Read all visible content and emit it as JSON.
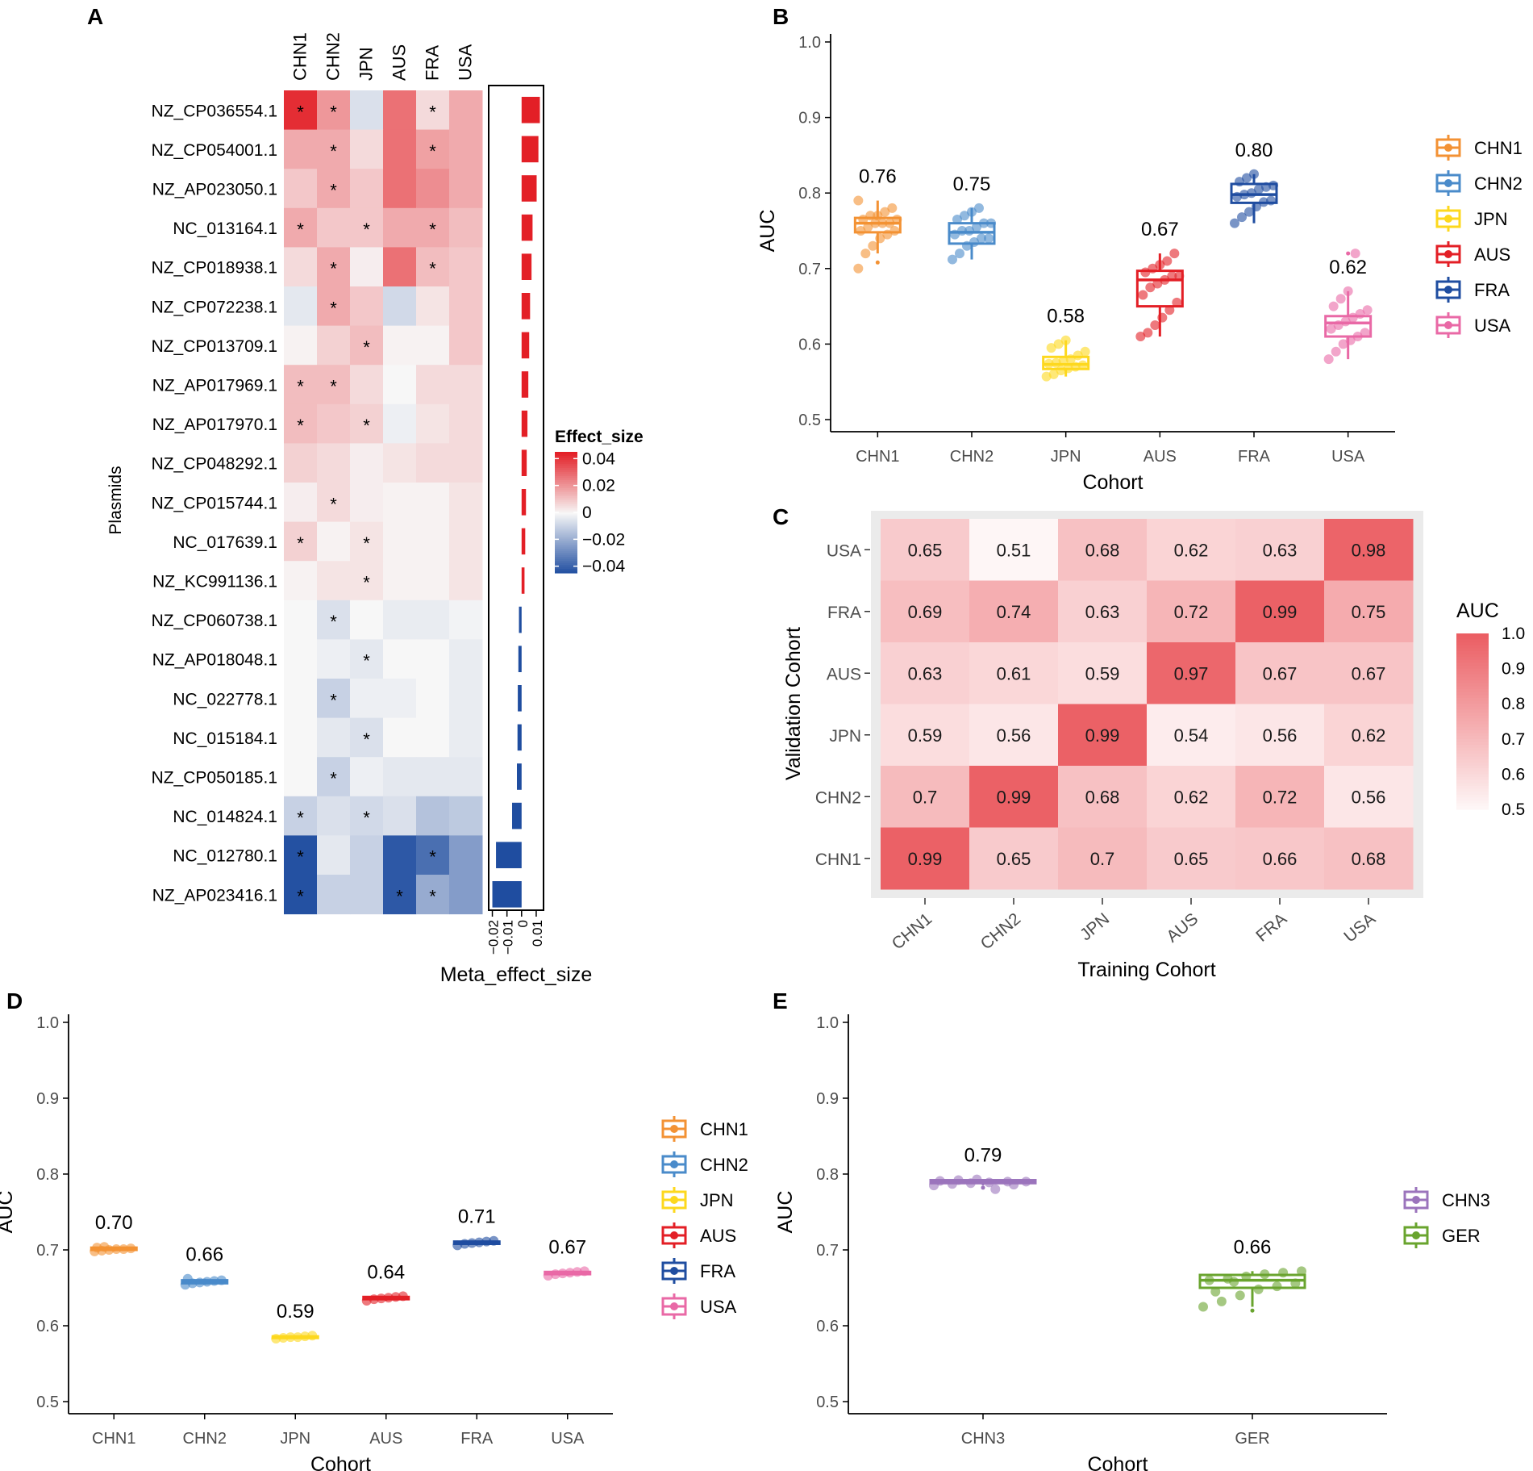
{
  "panel_labels": [
    "A",
    "B",
    "C",
    "D",
    "E"
  ],
  "colors": {
    "CHN1": "#f39234",
    "CHN2": "#4a8bca",
    "JPN": "#fdd81e",
    "AUS": "#e31f26",
    "FRA": "#1f4da0",
    "USA": "#e969a6",
    "CHN3": "#9b74bc",
    "GER": "#69a42e",
    "heat_low": "#ffffff",
    "heat_high": "#e31f26",
    "eff_pos": "#e31f26",
    "eff_neg": "#1f4da0"
  },
  "chart_data": [
    {
      "panel": "A",
      "type": "heatmap",
      "columns": [
        "CHN1",
        "CHN2",
        "JPN",
        "AUS",
        "FRA",
        "USA"
      ],
      "ylabel": "Plasmids",
      "legend_title": "Effect_size",
      "legend_ticks": [
        "0.04",
        "0.02",
        "0",
        "−0.02",
        "−0.04"
      ],
      "legend_values": [
        0.04,
        0.02,
        0,
        -0.02,
        -0.04
      ],
      "range": [
        -0.045,
        0.045
      ],
      "rows": [
        {
          "name": "NZ_CP036554.1",
          "values": [
            0.042,
            0.02,
            -0.006,
            0.028,
            0.006,
            0.016
          ],
          "stars": [
            true,
            true,
            false,
            false,
            true,
            false
          ],
          "meta": 0.0125
        },
        {
          "name": "NZ_CP054001.1",
          "values": [
            0.016,
            0.016,
            0.006,
            0.028,
            0.018,
            0.016
          ],
          "stars": [
            false,
            true,
            false,
            false,
            true,
            false
          ],
          "meta": 0.0115
        },
        {
          "name": "NZ_AP023050.1",
          "values": [
            0.01,
            0.016,
            0.01,
            0.028,
            0.022,
            0.016
          ],
          "stars": [
            false,
            true,
            false,
            false,
            false,
            false
          ],
          "meta": 0.0103
        },
        {
          "name": "NC_013164.1",
          "values": [
            0.016,
            0.01,
            0.01,
            0.016,
            0.016,
            0.012
          ],
          "stars": [
            true,
            false,
            true,
            false,
            true,
            false
          ],
          "meta": 0.0075
        },
        {
          "name": "NZ_CP018938.1",
          "values": [
            0.006,
            0.016,
            0.002,
            0.028,
            0.012,
            0.01
          ],
          "stars": [
            false,
            true,
            false,
            false,
            true,
            false
          ],
          "meta": 0.0068
        },
        {
          "name": "NZ_CP072238.1",
          "values": [
            -0.004,
            0.016,
            0.01,
            -0.008,
            0.004,
            0.01
          ],
          "stars": [
            false,
            true,
            false,
            false,
            false,
            false
          ],
          "meta": 0.0058
        },
        {
          "name": "NZ_CP013709.1",
          "values": [
            0.001,
            0.008,
            0.012,
            0.001,
            0.001,
            0.01
          ],
          "stars": [
            false,
            false,
            true,
            false,
            false,
            false
          ],
          "meta": 0.0052
        },
        {
          "name": "NZ_AP017969.1",
          "values": [
            0.012,
            0.012,
            0.006,
            0.0,
            0.006,
            0.006
          ],
          "stars": [
            true,
            true,
            false,
            false,
            false,
            false
          ],
          "meta": 0.0046
        },
        {
          "name": "NZ_AP017970.1",
          "values": [
            0.012,
            0.01,
            0.008,
            -0.002,
            0.004,
            0.006
          ],
          "stars": [
            true,
            false,
            true,
            false,
            false,
            false
          ],
          "meta": 0.004
        },
        {
          "name": "NZ_CP048292.1",
          "values": [
            0.008,
            0.006,
            0.002,
            0.004,
            0.006,
            0.006
          ],
          "stars": [
            false,
            false,
            false,
            false,
            false,
            false
          ],
          "meta": 0.0035
        },
        {
          "name": "NZ_CP015744.1",
          "values": [
            0.002,
            0.006,
            0.002,
            0.001,
            0.001,
            0.004
          ],
          "stars": [
            false,
            true,
            false,
            false,
            false,
            false
          ],
          "meta": 0.003
        },
        {
          "name": "NC_017639.1",
          "values": [
            0.008,
            0.001,
            0.004,
            0.001,
            0.001,
            0.004
          ],
          "stars": [
            true,
            false,
            true,
            false,
            false,
            false
          ],
          "meta": 0.0025
        },
        {
          "name": "NZ_KC991136.1",
          "values": [
            0.001,
            0.004,
            0.004,
            0.001,
            0.001,
            0.004
          ],
          "stars": [
            false,
            false,
            true,
            false,
            false,
            false
          ],
          "meta": 0.002
        },
        {
          "name": "NZ_CP060738.1",
          "values": [
            0.0,
            -0.006,
            0.0,
            -0.003,
            -0.003,
            -0.001
          ],
          "stars": [
            false,
            true,
            false,
            false,
            false,
            false
          ],
          "meta": -0.0018
        },
        {
          "name": "NZ_AP018048.1",
          "values": [
            0.0,
            -0.002,
            -0.004,
            0.0,
            0.0,
            -0.003
          ],
          "stars": [
            false,
            false,
            true,
            false,
            false,
            false
          ],
          "meta": -0.0022
        },
        {
          "name": "NC_022778.1",
          "values": [
            0.0,
            -0.01,
            -0.002,
            -0.002,
            0.0,
            -0.003
          ],
          "stars": [
            false,
            true,
            false,
            false,
            false,
            false
          ],
          "meta": -0.0026
        },
        {
          "name": "NC_015184.1",
          "values": [
            0.0,
            -0.004,
            -0.006,
            0.0,
            0.0,
            -0.003
          ],
          "stars": [
            false,
            false,
            true,
            false,
            false,
            false
          ],
          "meta": -0.0028
        },
        {
          "name": "NZ_CP050185.1",
          "values": [
            0.0,
            -0.01,
            -0.002,
            -0.004,
            -0.004,
            -0.004
          ],
          "stars": [
            false,
            true,
            false,
            false,
            false,
            false
          ],
          "meta": -0.0032
        },
        {
          "name": "NC_014824.1",
          "values": [
            -0.01,
            -0.006,
            -0.008,
            -0.006,
            -0.014,
            -0.012
          ],
          "stars": [
            true,
            false,
            true,
            false,
            false,
            false
          ],
          "meta": -0.0065
        },
        {
          "name": "NC_012780.1",
          "values": [
            -0.044,
            -0.004,
            -0.01,
            -0.042,
            -0.036,
            -0.024
          ],
          "stars": [
            true,
            false,
            false,
            false,
            true,
            false
          ],
          "meta": -0.0175
        },
        {
          "name": "NZ_AP023416.1",
          "values": [
            -0.044,
            -0.01,
            -0.01,
            -0.042,
            -0.02,
            -0.024
          ],
          "stars": [
            true,
            false,
            false,
            true,
            true,
            false
          ],
          "meta": -0.02
        }
      ],
      "meta_axis": {
        "label": "Meta_effect_size",
        "ticks": [
          -0.02,
          -0.01,
          0,
          0.01
        ],
        "tick_labels": [
          "−0.02",
          "−0.01",
          "0",
          "0.01"
        ],
        "range": [
          -0.0225,
          0.015
        ]
      }
    },
    {
      "panel": "B",
      "type": "box",
      "xlabel": "Cohort",
      "ylabel": "AUC",
      "ylim": [
        0.5,
        1.0
      ],
      "yticks": [
        0.5,
        0.6,
        0.7,
        0.8,
        0.9,
        1.0
      ],
      "ytick_labels": [
        "0.5",
        "0.6",
        "0.7",
        "0.8",
        "0.9",
        "1.0"
      ],
      "categories": [
        "CHN1",
        "CHN2",
        "JPN",
        "AUS",
        "FRA",
        "USA"
      ],
      "groups": [
        {
          "name": "CHN1",
          "q1": 0.748,
          "median": 0.76,
          "q3": 0.767,
          "whisker_low": 0.72,
          "whisker_high": 0.79,
          "label": "0.76",
          "outliers": [
            0.708
          ],
          "points": [
            0.7,
            0.72,
            0.73,
            0.74,
            0.745,
            0.75,
            0.75,
            0.755,
            0.76,
            0.76,
            0.76,
            0.765,
            0.765,
            0.77,
            0.77,
            0.775,
            0.78,
            0.79
          ]
        },
        {
          "name": "CHN2",
          "q1": 0.733,
          "median": 0.748,
          "q3": 0.76,
          "whisker_low": 0.712,
          "whisker_high": 0.78,
          "label": "0.75",
          "outliers": [],
          "points": [
            0.712,
            0.72,
            0.73,
            0.735,
            0.74,
            0.74,
            0.745,
            0.75,
            0.75,
            0.755,
            0.76,
            0.76,
            0.765,
            0.77,
            0.775,
            0.78
          ]
        },
        {
          "name": "JPN",
          "q1": 0.567,
          "median": 0.573,
          "q3": 0.583,
          "whisker_low": 0.557,
          "whisker_high": 0.605,
          "label": "0.58",
          "outliers": [],
          "points": [
            0.557,
            0.56,
            0.565,
            0.568,
            0.57,
            0.572,
            0.574,
            0.575,
            0.578,
            0.58,
            0.585,
            0.59,
            0.595,
            0.6,
            0.605
          ]
        },
        {
          "name": "AUS",
          "q1": 0.65,
          "median": 0.685,
          "q3": 0.697,
          "whisker_low": 0.61,
          "whisker_high": 0.72,
          "label": "0.67",
          "outliers": [],
          "points": [
            0.61,
            0.615,
            0.625,
            0.635,
            0.645,
            0.655,
            0.665,
            0.675,
            0.68,
            0.685,
            0.69,
            0.69,
            0.695,
            0.7,
            0.705,
            0.71,
            0.72
          ]
        },
        {
          "name": "FRA",
          "q1": 0.787,
          "median": 0.798,
          "q3": 0.812,
          "whisker_low": 0.76,
          "whisker_high": 0.825,
          "label": "0.80",
          "outliers": [],
          "points": [
            0.76,
            0.768,
            0.775,
            0.782,
            0.788,
            0.79,
            0.795,
            0.798,
            0.8,
            0.805,
            0.808,
            0.81,
            0.815,
            0.82,
            0.825
          ]
        },
        {
          "name": "USA",
          "q1": 0.61,
          "median": 0.628,
          "q3": 0.637,
          "whisker_low": 0.58,
          "whisker_high": 0.67,
          "label": "0.62",
          "outliers": [
            0.72
          ],
          "points": [
            0.58,
            0.59,
            0.6,
            0.605,
            0.61,
            0.615,
            0.62,
            0.625,
            0.63,
            0.635,
            0.64,
            0.645,
            0.65,
            0.66,
            0.67,
            0.72
          ]
        }
      ]
    },
    {
      "panel": "C",
      "type": "heatmap",
      "xlabel": "Training Cohort",
      "ylabel": "Validation Cohort",
      "x": [
        "CHN1",
        "CHN2",
        "JPN",
        "AUS",
        "FRA",
        "USA"
      ],
      "y_top_to_bottom": [
        "USA",
        "FRA",
        "AUS",
        "JPN",
        "CHN2",
        "CHN1"
      ],
      "values": [
        [
          "0.65",
          "0.51",
          "0.68",
          "0.62",
          "0.63",
          "0.98"
        ],
        [
          "0.69",
          "0.74",
          "0.63",
          "0.72",
          "0.99",
          "0.75"
        ],
        [
          "0.63",
          "0.61",
          "0.59",
          "0.97",
          "0.67",
          "0.67"
        ],
        [
          "0.59",
          "0.56",
          "0.99",
          "0.54",
          "0.56",
          "0.62"
        ],
        [
          "0.7",
          "0.99",
          "0.68",
          "0.62",
          "0.72",
          "0.56"
        ],
        [
          "0.99",
          "0.65",
          "0.7",
          "0.65",
          "0.66",
          "0.68"
        ]
      ],
      "legend_title": "AUC",
      "legend_ticks": [
        "1.0",
        "0.9",
        "0.8",
        "0.7",
        "0.6",
        "0.5"
      ],
      "legend_values": [
        1.0,
        0.9,
        0.8,
        0.7,
        0.6,
        0.5
      ],
      "range": [
        0.48,
        1.0
      ]
    },
    {
      "panel": "D",
      "type": "box",
      "xlabel": "Cohort",
      "ylabel": "AUC",
      "ylim": [
        0.5,
        1.0
      ],
      "yticks": [
        0.5,
        0.6,
        0.7,
        0.8,
        0.9,
        1.0
      ],
      "ytick_labels": [
        "0.5",
        "0.6",
        "0.7",
        "0.8",
        "0.9",
        "1.0"
      ],
      "categories": [
        "CHN1",
        "CHN2",
        "JPN",
        "AUS",
        "FRA",
        "USA"
      ],
      "groups": [
        {
          "name": "CHN1",
          "q1": 0.7,
          "median": 0.701,
          "q3": 0.703,
          "whisker_low": 0.698,
          "whisker_high": 0.704,
          "label": "0.70",
          "outliers": [],
          "points": [
            0.698,
            0.699,
            0.7,
            0.701,
            0.701,
            0.702,
            0.703,
            0.704
          ]
        },
        {
          "name": "CHN2",
          "q1": 0.656,
          "median": 0.658,
          "q3": 0.66,
          "whisker_low": 0.654,
          "whisker_high": 0.662,
          "label": "0.66",
          "outliers": [],
          "points": [
            0.654,
            0.656,
            0.657,
            0.658,
            0.659,
            0.66,
            0.662
          ]
        },
        {
          "name": "JPN",
          "q1": 0.584,
          "median": 0.585,
          "q3": 0.586,
          "whisker_low": 0.583,
          "whisker_high": 0.587,
          "label": "0.59",
          "outliers": [],
          "points": [
            0.583,
            0.584,
            0.585,
            0.585,
            0.586,
            0.587
          ]
        },
        {
          "name": "AUS",
          "q1": 0.635,
          "median": 0.636,
          "q3": 0.638,
          "whisker_low": 0.633,
          "whisker_high": 0.639,
          "label": "0.64",
          "outliers": [],
          "points": [
            0.633,
            0.635,
            0.636,
            0.637,
            0.638,
            0.639
          ]
        },
        {
          "name": "FRA",
          "q1": 0.708,
          "median": 0.709,
          "q3": 0.711,
          "whisker_low": 0.706,
          "whisker_high": 0.712,
          "label": "0.71",
          "outliers": [],
          "points": [
            0.706,
            0.708,
            0.709,
            0.71,
            0.711,
            0.712
          ]
        },
        {
          "name": "USA",
          "q1": 0.668,
          "median": 0.669,
          "q3": 0.671,
          "whisker_low": 0.666,
          "whisker_high": 0.672,
          "label": "0.67",
          "outliers": [],
          "points": [
            0.666,
            0.668,
            0.669,
            0.67,
            0.671,
            0.672
          ]
        }
      ]
    },
    {
      "panel": "E",
      "type": "box",
      "xlabel": "Cohort",
      "ylabel": "AUC",
      "ylim": [
        0.5,
        1.0
      ],
      "yticks": [
        0.5,
        0.6,
        0.7,
        0.8,
        0.9,
        1.0
      ],
      "ytick_labels": [
        "0.5",
        "0.6",
        "0.7",
        "0.8",
        "0.9",
        "1.0"
      ],
      "categories": [
        "CHN3",
        "GER"
      ],
      "groups": [
        {
          "name": "CHN3",
          "q1": 0.788,
          "median": 0.79,
          "q3": 0.792,
          "whisker_low": 0.785,
          "whisker_high": 0.793,
          "label": "0.79",
          "outliers": [
            0.782
          ],
          "points": [
            0.785,
            0.787,
            0.788,
            0.789,
            0.79,
            0.79,
            0.791,
            0.792,
            0.793,
            0.78,
            0.786
          ]
        },
        {
          "name": "GER",
          "q1": 0.65,
          "median": 0.66,
          "q3": 0.667,
          "whisker_low": 0.625,
          "whisker_high": 0.672,
          "label": "0.66",
          "outliers": [
            0.62
          ],
          "points": [
            0.625,
            0.632,
            0.64,
            0.648,
            0.652,
            0.656,
            0.66,
            0.662,
            0.665,
            0.668,
            0.67,
            0.672,
            0.645,
            0.658
          ]
        }
      ]
    }
  ]
}
